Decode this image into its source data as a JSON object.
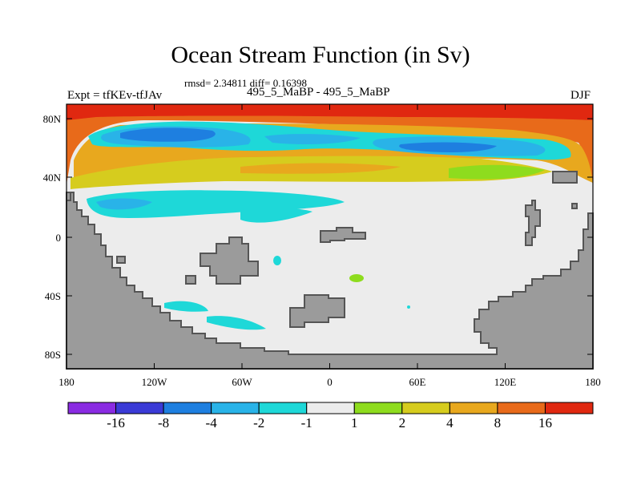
{
  "title": "Ocean Stream Function (in Sv)",
  "stats": "rmsd= 2.34811 diff= 0.16398",
  "left_label": "Expt = tfKEv-tfJAv",
  "center_label": "495_5_MaBP - 495_5_MaBP",
  "right_label": "DJF",
  "lat_ticks": [
    "80N",
    "40N",
    "0",
    "40S",
    "80S"
  ],
  "lon_ticks": [
    "180",
    "120W",
    "60W",
    "0",
    "60E",
    "120E",
    "180"
  ],
  "colorbar": {
    "labels": [
      "-16",
      "-8",
      "-4",
      "-2",
      "-1",
      "1",
      "2",
      "4",
      "8",
      "16"
    ],
    "colors": [
      "#8a2be2",
      "#3a3ad6",
      "#1e7fe0",
      "#29b3e8",
      "#1ed8d8",
      "#ececec",
      "#8edc1e",
      "#d6cc1e",
      "#e8a81e",
      "#e86a1a",
      "#e02810"
    ]
  },
  "colors": {
    "land": "#9b9b9b",
    "land_edge": "#555555",
    "background": "#ececec"
  }
}
